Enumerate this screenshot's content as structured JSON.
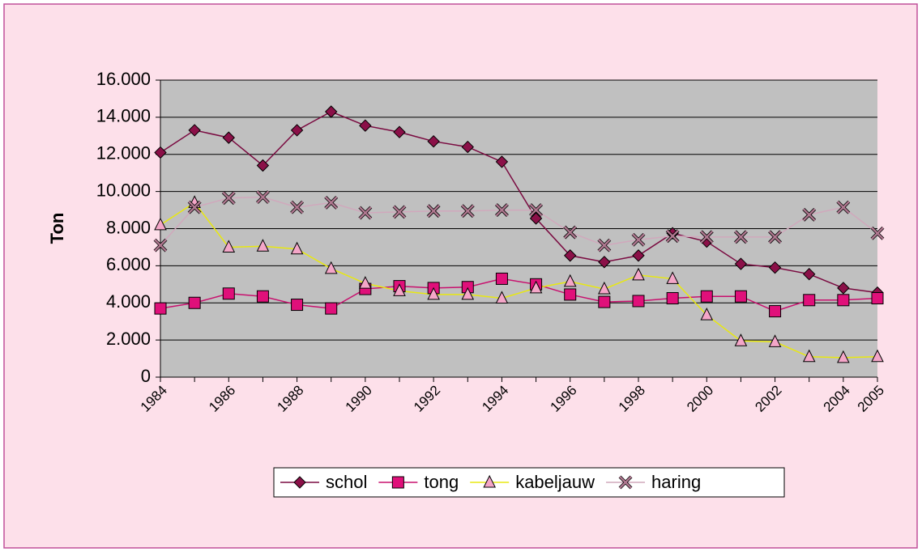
{
  "chart_data": {
    "type": "line",
    "ylabel": "Ton",
    "categories": [
      "1984",
      null,
      "1986",
      null,
      "1988",
      null,
      "1990",
      null,
      "1992",
      null,
      "1994",
      null,
      "1996",
      null,
      "1998",
      null,
      "2000",
      null,
      "2002",
      null,
      "2004",
      "2005"
    ],
    "series": [
      {
        "name": "schol",
        "color": "#8b1048",
        "line_color": "#7a0a40",
        "marker": "diamond",
        "values": [
          12100,
          13300,
          12900,
          11400,
          13300,
          14300,
          13550,
          13200,
          12700,
          12400,
          11600,
          8550,
          6550,
          6200,
          6550,
          7750,
          7300,
          6100,
          5900,
          5550,
          4800,
          4550
        ]
      },
      {
        "name": "tong",
        "color": "#e0107a",
        "line_color": "#c8106e",
        "marker": "square",
        "values": [
          3700,
          4000,
          4500,
          4350,
          3900,
          3700,
          4750,
          4900,
          4800,
          4850,
          5300,
          5000,
          4450,
          4050,
          4100,
          4250,
          4350,
          4350,
          3550,
          4150,
          4150,
          4250
        ]
      },
      {
        "name": "kabeljauw",
        "color": "#f4a6c8",
        "line_color": "#e8e810",
        "marker": "triangle",
        "values": [
          8200,
          9400,
          7000,
          7050,
          6900,
          5850,
          5050,
          4650,
          4450,
          4450,
          4250,
          4800,
          5150,
          4750,
          5500,
          5300,
          3350,
          1950,
          1900,
          1100,
          1050,
          1100
        ]
      },
      {
        "name": "haring",
        "color": "#b07890",
        "line_color": "#d0a8bc",
        "marker": "x",
        "values": [
          7100,
          9150,
          9650,
          9700,
          9150,
          9400,
          8850,
          8900,
          8950,
          8950,
          9000,
          9000,
          7800,
          7100,
          7400,
          7600,
          7550,
          7550,
          7550,
          8750,
          9150,
          7750
        ]
      }
    ],
    "ylim": [
      0,
      16000
    ],
    "yticks": [
      0,
      {
        "value": 2000,
        "label": "2.000"
      },
      {
        "value": 4000,
        "label": "4.000"
      },
      {
        "value": 6000,
        "label": "6.000"
      },
      {
        "value": 8000,
        "label": "8.000"
      },
      {
        "value": 10000,
        "label": "10.000"
      },
      {
        "value": 12000,
        "label": "12.000"
      },
      {
        "value": 14000,
        "label": "14.000"
      },
      {
        "value": 16000,
        "label": "16.000"
      }
    ],
    "grid": true,
    "legend": "bottom"
  }
}
